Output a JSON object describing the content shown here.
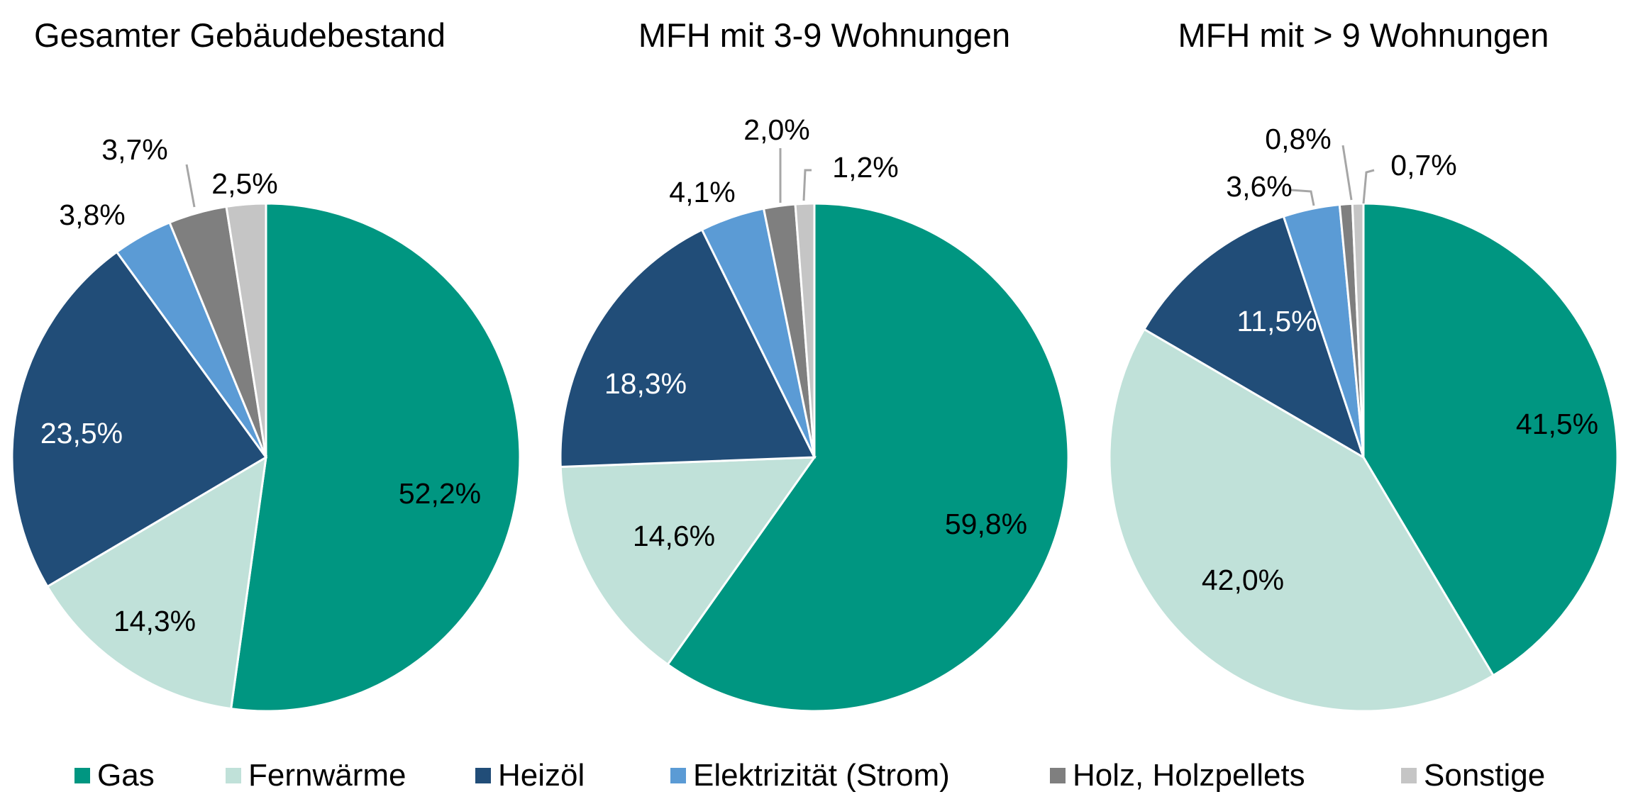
{
  "chart_data": [
    {
      "type": "pie",
      "title": "Gesamter Gebäudebestand",
      "categories": [
        "Gas",
        "Fernwärme",
        "Heizöl",
        "Elektrizität (Strom)",
        "Holz, Holzpellets",
        "Sonstige"
      ],
      "values": [
        52.2,
        14.3,
        23.5,
        3.8,
        3.7,
        2.5
      ],
      "labels": [
        "52,2%",
        "14,3%",
        "23,5%",
        "3,8%",
        "3,7%",
        "2,5%"
      ]
    },
    {
      "type": "pie",
      "title": "MFH mit 3-9 Wohnungen",
      "categories": [
        "Gas",
        "Fernwärme",
        "Heizöl",
        "Elektrizität (Strom)",
        "Holz, Holzpellets",
        "Sonstige"
      ],
      "values": [
        59.8,
        14.6,
        18.3,
        4.1,
        2.0,
        1.2
      ],
      "labels": [
        "59,8%",
        "14,6%",
        "18,3%",
        "4,1%",
        "2,0%",
        "1,2%"
      ]
    },
    {
      "type": "pie",
      "title": "MFH mit > 9 Wohnungen",
      "categories": [
        "Gas",
        "Fernwärme",
        "Heizöl",
        "Elektrizität (Strom)",
        "Holz, Holzpellets",
        "Sonstige"
      ],
      "values": [
        41.5,
        42.0,
        11.5,
        3.6,
        0.8,
        0.7
      ],
      "labels": [
        "41,5%",
        "42,0%",
        "11,5%",
        "3,6%",
        "0,8%",
        "0,7%"
      ]
    }
  ],
  "legend": {
    "position": "bottom",
    "items": [
      {
        "label": "Gas",
        "color": "#009681"
      },
      {
        "label": "Fernwärme",
        "color": "#c0e1d9"
      },
      {
        "label": "Heizöl",
        "color": "#214d78"
      },
      {
        "label": "Elektrizität (Strom)",
        "color": "#5b9bd5"
      },
      {
        "label": "Holz, Holzpellets",
        "color": "#7f7f7f"
      },
      {
        "label": "Sonstige",
        "color": "#c5c5c5"
      }
    ]
  }
}
